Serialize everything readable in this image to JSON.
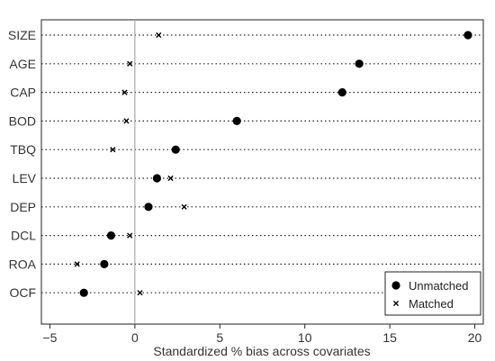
{
  "chart_data": {
    "type": "scatter",
    "title": "",
    "xlabel": "Standardized % bias across covariates",
    "ylabel": "",
    "xlim": [
      -5.5,
      20.5
    ],
    "xticks": [
      -5,
      0,
      5,
      10,
      15,
      20
    ],
    "xtick_labels": [
      "−5",
      "0",
      "5",
      "10",
      "15",
      "20"
    ],
    "categories": [
      "SIZE",
      "AGE",
      "CAP",
      "BOD",
      "TBQ",
      "LEV",
      "DEP",
      "DCL",
      "ROA",
      "OCF"
    ],
    "grid": "dotted horizontal lines per category",
    "reference_line_x": 0,
    "legend_position": "bottom-right",
    "series": [
      {
        "name": "Unmatched",
        "marker": "circle",
        "color": "#000000",
        "values": [
          19.6,
          13.2,
          12.2,
          6.0,
          2.4,
          1.3,
          0.8,
          -1.4,
          -1.8,
          -3.0
        ]
      },
      {
        "name": "Matched",
        "marker": "x",
        "color": "#000000",
        "values": [
          1.4,
          -0.3,
          -0.6,
          -0.5,
          -1.3,
          2.1,
          2.9,
          -0.3,
          -3.4,
          0.3
        ]
      }
    ]
  }
}
